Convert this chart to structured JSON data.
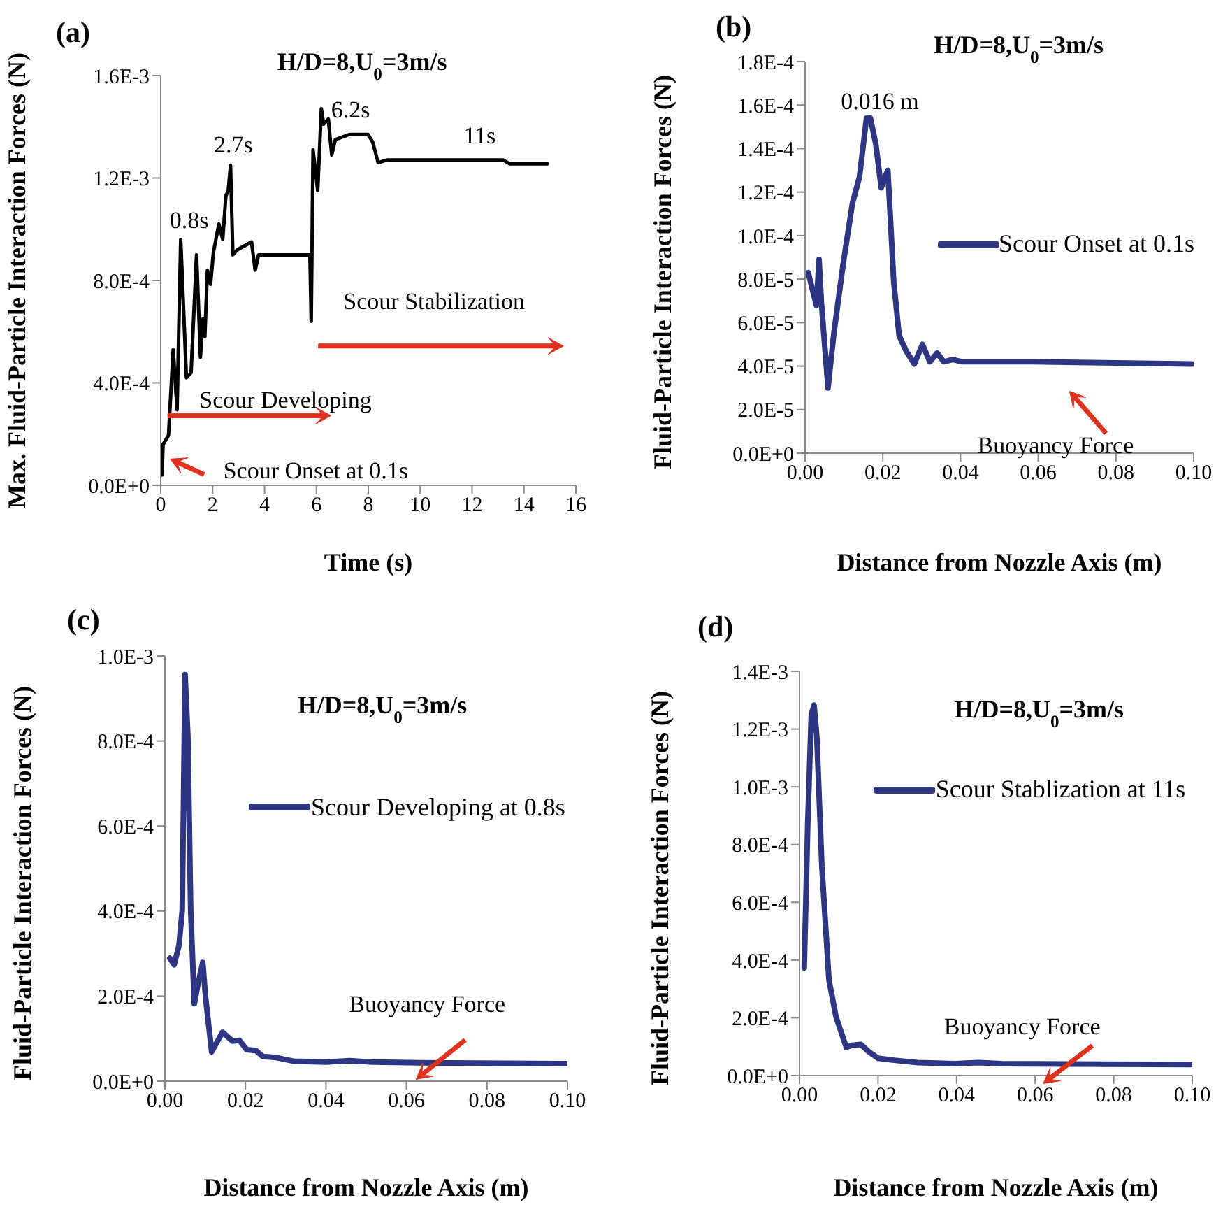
{
  "chart_data": [
    {
      "type": "line",
      "title": "H/D=8,U$_{0}$=3m/s",
      "xlabel": "Time (s)",
      "ylabel": "Max. Fluid-Particle Interaction Forces (N)",
      "x": [
        0.05,
        0.09,
        0.3,
        0.48,
        0.63,
        0.77,
        0.99,
        1.17,
        1.38,
        1.53,
        1.63,
        1.7,
        1.8,
        1.92,
        2.03,
        2.24,
        2.39,
        2.51,
        2.6,
        2.69,
        2.78,
        2.96,
        3.5,
        3.64,
        3.77,
        4.94,
        5.75,
        5.8,
        5.87,
        6.05,
        6.19,
        6.28,
        6.46,
        6.59,
        6.73,
        7.27,
        7.99,
        8.17,
        8.38,
        8.71,
        9.96,
        13.2,
        13.46,
        14.9
      ],
      "series": [
        {
          "color": "#000000",
          "values": [
            4e-05,
            0.00016,
            0.000195,
            0.00053,
            0.000295,
            0.00096,
            0.00042,
            0.00044,
            0.0009,
            0.0005,
            0.00065,
            0.00058,
            0.00084,
            0.000785,
            0.00091,
            0.00102,
            0.00096,
            0.00113,
            0.00115,
            0.00125,
            0.0009,
            0.00092,
            0.00095,
            0.00084,
            0.0009,
            0.0009,
            0.0009,
            0.00064,
            0.00131,
            0.00115,
            0.00147,
            0.00141,
            0.00143,
            0.00129,
            0.00135,
            0.00137,
            0.00137,
            0.00134,
            0.00126,
            0.00127,
            0.00127,
            0.00127,
            0.001255,
            0.001255
          ]
        }
      ],
      "xlim": [
        0,
        16
      ],
      "xticks": [
        0,
        2,
        4,
        6,
        8,
        10,
        12,
        14,
        16
      ],
      "ylim": [
        0,
        0.0016
      ],
      "yticks": [
        {
          "value": 0,
          "label": "0.0E+0"
        },
        {
          "value": 0.0004,
          "label": "4.0E-4"
        },
        {
          "value": 0.0008,
          "label": "8.0E-4"
        },
        {
          "value": 0.0012,
          "label": "1.2E-3"
        },
        {
          "value": 0.0016,
          "label": "1.6E-3"
        }
      ],
      "marker": "none",
      "line_style": "solid",
      "annotations": [
        "(a)",
        {
          "text": "0.8s",
          "x": 0.77,
          "y": 0.00096
        },
        {
          "text": "2.7s",
          "x": 2.69,
          "y": 0.00125
        },
        {
          "text": "6.2s",
          "x": 6.19,
          "y": 0.00147
        },
        {
          "text": "11s",
          "x": 11,
          "y": 0.00127
        },
        "Scour Developing",
        "Scour Stabilization",
        {
          "text": "Scour Onset at 0.1s",
          "x": 0.1,
          "y": 0.00013
        }
      ]
    },
    {
      "type": "line",
      "title": "H/D=8,U$_{0}$=3m/s",
      "xlabel": "Distance from Nozzle Axis (m)",
      "ylabel": "Fluid-Particle Interaction Forces (N)",
      "x": [
        0.0008,
        0.0029,
        0.0036,
        0.0042,
        0.0059,
        0.0074,
        0.0098,
        0.0122,
        0.014,
        0.0158,
        0.0168,
        0.0182,
        0.0196,
        0.0206,
        0.0213,
        0.0218,
        0.0228,
        0.0242,
        0.026,
        0.0281,
        0.0302,
        0.0321,
        0.034,
        0.0357,
        0.038,
        0.0404,
        0.0589,
        0.0996
      ],
      "series": [
        {
          "name": "Scour Onset at 0.1s",
          "color": "#2e3582",
          "values": [
            8.3e-05,
            6.8e-05,
            8.9e-05,
            6.9e-05,
            3e-05,
            5.5e-05,
            8.7e-05,
            0.000115,
            0.000127,
            0.000154,
            0.000154,
            0.000142,
            0.000122,
            0.000127,
            0.00013,
            0.000113,
            7.9e-05,
            5.4e-05,
            4.7e-05,
            4.1e-05,
            5e-05,
            4.2e-05,
            4.6e-05,
            4.2e-05,
            4.3e-05,
            4.2e-05,
            4.2e-05,
            4.1e-05
          ]
        }
      ],
      "xlim": [
        0,
        0.1
      ],
      "xticks": [
        {
          "value": 0,
          "label": "0.00"
        },
        {
          "value": 0.02,
          "label": "0.02"
        },
        {
          "value": 0.04,
          "label": "0.04"
        },
        {
          "value": 0.06,
          "label": "0.06"
        },
        {
          "value": 0.08,
          "label": "0.08"
        },
        {
          "value": 0.1,
          "label": "0.10"
        }
      ],
      "ylim": [
        0,
        0.00018
      ],
      "yticks": [
        {
          "value": 0,
          "label": "0.0E+0"
        },
        {
          "value": 2e-05,
          "label": "2.0E-5"
        },
        {
          "value": 4e-05,
          "label": "4.0E-5"
        },
        {
          "value": 6e-05,
          "label": "6.0E-5"
        },
        {
          "value": 8e-05,
          "label": "8.0E-5"
        },
        {
          "value": 0.0001,
          "label": "1.0E-4"
        },
        {
          "value": 0.00012,
          "label": "1.2E-4"
        },
        {
          "value": 0.00014,
          "label": "1.4E-4"
        },
        {
          "value": 0.00016,
          "label": "1.6E-4"
        },
        {
          "value": 0.00018,
          "label": "1.8E-4"
        }
      ],
      "marker": "none",
      "line_style": "solid",
      "legend": "right",
      "annotations": [
        "(b)",
        {
          "text": "0.016 m",
          "x": 0.016,
          "y": 0.000155
        },
        {
          "text": "Buoyancy Force",
          "x": 0.067,
          "y": 4.2e-05
        }
      ]
    },
    {
      "type": "line",
      "title": "H/D=8,U$_{0}$=3m/s",
      "xlabel": "Distance from Nozzle Axis (m)",
      "ylabel": "Fluid-Particle Interaction Forces (N)",
      "x": [
        0.0012,
        0.0023,
        0.0035,
        0.0043,
        0.005,
        0.0057,
        0.0064,
        0.0073,
        0.0082,
        0.0094,
        0.0101,
        0.0116,
        0.0143,
        0.0168,
        0.0185,
        0.0203,
        0.0226,
        0.0243,
        0.0272,
        0.0319,
        0.04,
        0.0458,
        0.0516,
        0.0632,
        0.0997
      ],
      "series": [
        {
          "name": "Scour Developing at 0.8s",
          "color": "#2e3582",
          "values": [
            0.000289,
            0.000274,
            0.00032,
            0.000402,
            0.000956,
            0.000812,
            0.000402,
            0.000182,
            0.000228,
            0.000279,
            0.000197,
            6.9e-05,
            0.000115,
            9.4e-05,
            9.6e-05,
            7.4e-05,
            7.2e-05,
            5.8e-05,
            5.6e-05,
            4.7e-05,
            4.5e-05,
            4.8e-05,
            4.5e-05,
            4.3e-05,
            4.1e-05
          ]
        }
      ],
      "xlim": [
        0,
        0.1
      ],
      "xticks": [
        {
          "value": 0,
          "label": "0.00"
        },
        {
          "value": 0.02,
          "label": "0.02"
        },
        {
          "value": 0.04,
          "label": "0.04"
        },
        {
          "value": 0.06,
          "label": "0.06"
        },
        {
          "value": 0.08,
          "label": "0.08"
        },
        {
          "value": 0.1,
          "label": "0.10"
        }
      ],
      "ylim": [
        0,
        0.001
      ],
      "yticks": [
        {
          "value": 0,
          "label": "0.0E+0"
        },
        {
          "value": 0.0002,
          "label": "2.0E-4"
        },
        {
          "value": 0.0004,
          "label": "4.0E-4"
        },
        {
          "value": 0.0006,
          "label": "6.0E-4"
        },
        {
          "value": 0.0008,
          "label": "8.0E-4"
        },
        {
          "value": 0.001,
          "label": "1.0E-3"
        }
      ],
      "marker": "none",
      "line_style": "solid",
      "legend": "right",
      "annotations": [
        "(c)",
        {
          "text": "Buoyancy Force",
          "x": 0.061,
          "y": 4.4e-05
        }
      ]
    },
    {
      "type": "line",
      "title": "H/D=8,U$_{0}$=3m/s",
      "xlabel": "Distance from Nozzle Axis (m)",
      "ylabel": "Fluid-Particle Interaction Forces (N)",
      "x": [
        0.0012,
        0.0021,
        0.003,
        0.0037,
        0.0044,
        0.0057,
        0.0075,
        0.0093,
        0.0119,
        0.0134,
        0.0156,
        0.0176,
        0.02,
        0.0241,
        0.0301,
        0.0396,
        0.0455,
        0.0515,
        0.0996
      ],
      "series": [
        {
          "name": "Scour Stablization at 11s",
          "color": "#2e3582",
          "values": [
            0.000373,
            0.000873,
            0.00125,
            0.001283,
            0.001175,
            0.000723,
            0.000331,
            0.000203,
            9.8e-05,
            0.000105,
            0.000108,
            8.3e-05,
            6e-05,
            5.3e-05,
            4.5e-05,
            4.1e-05,
            4.5e-05,
            4.1e-05,
            3.8e-05
          ]
        }
      ],
      "xlim": [
        0,
        0.1
      ],
      "xticks": [
        {
          "value": 0,
          "label": "0.00"
        },
        {
          "value": 0.02,
          "label": "0.02"
        },
        {
          "value": 0.04,
          "label": "0.04"
        },
        {
          "value": 0.06,
          "label": "0.06"
        },
        {
          "value": 0.08,
          "label": "0.08"
        },
        {
          "value": 0.1,
          "label": "0.10"
        }
      ],
      "ylim": [
        0,
        0.0014
      ],
      "yticks": [
        {
          "value": 0,
          "label": "0.0E+0"
        },
        {
          "value": 0.0002,
          "label": "2.0E-4"
        },
        {
          "value": 0.0004,
          "label": "4.0E-4"
        },
        {
          "value": 0.0006,
          "label": "6.0E-4"
        },
        {
          "value": 0.0008,
          "label": "8.0E-4"
        },
        {
          "value": 0.001,
          "label": "1.0E-3"
        },
        {
          "value": 0.0012,
          "label": "1.2E-3"
        },
        {
          "value": 0.0014,
          "label": "1.4E-3"
        }
      ],
      "marker": "none",
      "line_style": "solid",
      "legend": "right",
      "annotations": [
        "(d)",
        {
          "text": "Buoyancy Force",
          "x": 0.061,
          "y": 4.2e-05
        }
      ]
    }
  ]
}
